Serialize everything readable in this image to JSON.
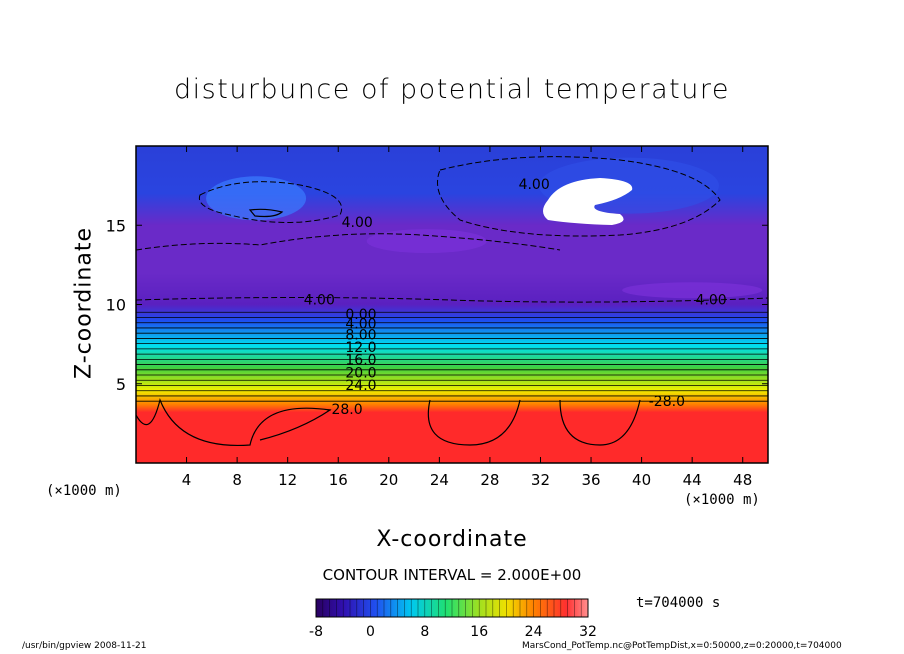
{
  "chart_data": {
    "type": "heatmap",
    "title": "disturbunce of potential temperature",
    "xlabel": "X-coordinate",
    "ylabel": "Z-coordinate",
    "x_unit": "(×1000 m)",
    "x_ticks": [
      4,
      8,
      12,
      16,
      20,
      24,
      28,
      32,
      36,
      40,
      44,
      48
    ],
    "y_ticks": [
      5,
      10,
      15
    ],
    "xlim": [
      0,
      50
    ],
    "ylim": [
      0,
      20
    ],
    "contour_labels": [
      "4.00",
      "4.00",
      "4.00",
      "4.00",
      "0.00",
      "4.00",
      "8.00",
      "12.0",
      "16.0",
      "20.0",
      "24.0",
      "-28.0",
      "-28.0"
    ],
    "contour_interval": "CONTOUR INTERVAL = 2.000E+00",
    "colorbar": {
      "ticks": [
        "-8",
        "0",
        "8",
        "16",
        "24",
        "32"
      ],
      "range": [
        -8,
        32
      ]
    },
    "time_label": "t=704000 s",
    "colors": {
      "low": "#3a0a8c",
      "purple": "#7a2cd0",
      "blue": "#1e4cf0",
      "cyan": "#00e0f0",
      "green": "#40d040",
      "yellow": "#f0f000",
      "orange": "#ff8000",
      "red": "#ff2a2a"
    }
  },
  "footer": {
    "left": "/usr/bin/gpview   2008-11-21",
    "right": "MarsCond_PotTemp.nc@PotTempDist,x=0:50000,z=0:20000,t=704000"
  }
}
